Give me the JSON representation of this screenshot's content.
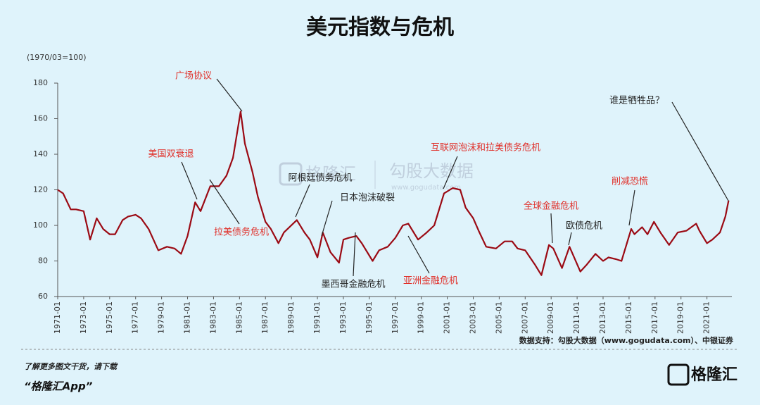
{
  "chart_data": {
    "type": "line",
    "title": "美元指数与危机",
    "y_unit": "(1970/03=100)",
    "x": [
      "1971-01",
      "1971-06",
      "1972-01",
      "1972-06",
      "1973-01",
      "1973-07",
      "1974-01",
      "1974-07",
      "1975-01",
      "1975-06",
      "1976-01",
      "1976-06",
      "1977-01",
      "1977-06",
      "1978-01",
      "1978-10",
      "1979-06",
      "1980-01",
      "1980-07",
      "1981-01",
      "1981-08",
      "1982-01",
      "1982-10",
      "1983-06",
      "1984-01",
      "1984-07",
      "1985-02",
      "1985-06",
      "1986-01",
      "1986-06",
      "1987-01",
      "1987-06",
      "1988-01",
      "1988-06",
      "1989-06",
      "1990-01",
      "1990-06",
      "1991-01",
      "1991-06",
      "1992-01",
      "1992-09",
      "1993-01",
      "1993-06",
      "1994-01",
      "1994-06",
      "1995-04",
      "1995-10",
      "1996-06",
      "1997-01",
      "1997-08",
      "1998-01",
      "1998-10",
      "1999-06",
      "2000-01",
      "2000-10",
      "2001-06",
      "2002-01",
      "2002-06",
      "2003-01",
      "2003-06",
      "2004-01",
      "2004-10",
      "2005-06",
      "2006-01",
      "2006-06",
      "2007-01",
      "2007-10",
      "2008-04",
      "2008-11",
      "2009-03",
      "2009-11",
      "2010-06",
      "2011-04",
      "2011-10",
      "2012-06",
      "2013-01",
      "2013-06",
      "2014-01",
      "2014-06",
      "2015-03",
      "2015-06",
      "2016-01",
      "2016-06",
      "2016-12",
      "2017-06",
      "2018-02",
      "2018-10",
      "2019-06",
      "2020-03",
      "2020-06",
      "2021-01",
      "2021-06",
      "2022-01",
      "2022-06",
      "2022-09"
    ],
    "series": [
      {
        "name": "美元指数",
        "color": "#9b0a14",
        "values": [
          120,
          118,
          109,
          109,
          108,
          92,
          104,
          98,
          95,
          95,
          103,
          105,
          106,
          104,
          98,
          86,
          88,
          87,
          84,
          94,
          113,
          108,
          122,
          122,
          128,
          138,
          164,
          146,
          130,
          116,
          102,
          98,
          90,
          96,
          103,
          96,
          92,
          82,
          96,
          85,
          79,
          92,
          93,
          94,
          90,
          80,
          86,
          88,
          93,
          100,
          101,
          92,
          96,
          100,
          118,
          121,
          120,
          110,
          104,
          97,
          88,
          87,
          91,
          91,
          87,
          86,
          78,
          72,
          89,
          87,
          76,
          88,
          74,
          78,
          84,
          80,
          82,
          81,
          80,
          98,
          95,
          99,
          95,
          102,
          96,
          89,
          96,
          97,
          101,
          97,
          90,
          92,
          96,
          105,
          114
        ]
      }
    ],
    "xlim": [
      "1971-01",
      "2022-12"
    ],
    "xticks": [
      "1971-01",
      "1973-01",
      "1975-01",
      "1977-01",
      "1979-01",
      "1981-01",
      "1983-01",
      "1985-01",
      "1987-01",
      "1989-01",
      "1991-01",
      "1993-01",
      "1995-01",
      "1997-01",
      "1999-01",
      "2001-01",
      "2003-01",
      "2005-01",
      "2007-01",
      "2009-01",
      "2011-01",
      "2013-01",
      "2015-01",
      "2017-01",
      "2019-01",
      "2021-01"
    ],
    "ylim": [
      60,
      180
    ],
    "yticks": [
      60,
      80,
      100,
      120,
      140,
      160,
      180
    ],
    "annotations": [
      {
        "text": "广场协议",
        "color": "#e0302a"
      },
      {
        "text": "美国双衰退",
        "color": "#e0302a"
      },
      {
        "text": "拉美债务危机",
        "color": "#e0302a"
      },
      {
        "text": "阿根廷债务危机",
        "color": "#222222"
      },
      {
        "text": "日本泡沫破裂",
        "color": "#222222"
      },
      {
        "text": "墨西哥金融危机",
        "color": "#222222"
      },
      {
        "text": "亚洲金融危机",
        "color": "#e0302a"
      },
      {
        "text": "互联网泡沫和拉美债务危机",
        "color": "#e0302a"
      },
      {
        "text": "全球金融危机",
        "color": "#e0302a"
      },
      {
        "text": "欧债危机",
        "color": "#222222"
      },
      {
        "text": "削减恐慌",
        "color": "#e0302a"
      },
      {
        "text": "谁是牺牲品？",
        "color": "#222222"
      }
    ],
    "watermark": [
      "格隆汇",
      "勾股大数据",
      "www.gogudata.com"
    ],
    "source": "数据支持：勾股大数据（www.gogudata.com）、中银证券"
  },
  "footer": {
    "line1": "了解更多图文干货，请下载",
    "line2": "“格隆汇App”",
    "logo": "格隆汇"
  }
}
